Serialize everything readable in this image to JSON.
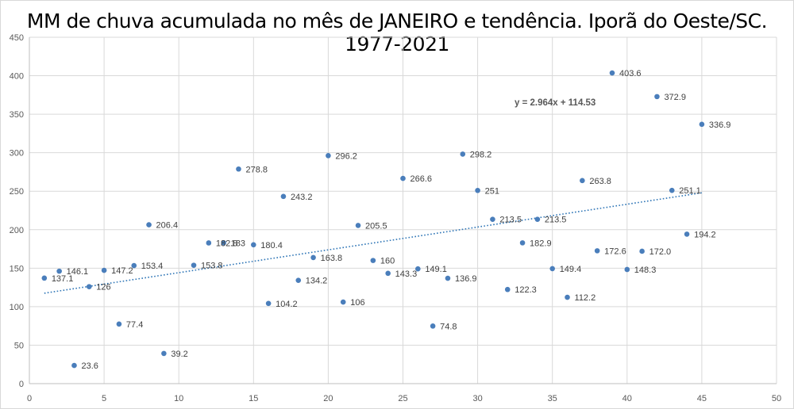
{
  "chart_data": {
    "type": "scatter",
    "title": "MM de chuva acumulada no mês de JANEIRO e tendência. Iporã do Oeste/SC. 1977-2021",
    "xlabel": "",
    "ylabel": "",
    "xlim": [
      0,
      50
    ],
    "ylim": [
      0,
      450
    ],
    "xticks": [
      0,
      5,
      10,
      15,
      20,
      25,
      30,
      35,
      40,
      45,
      50
    ],
    "yticks": [
      0,
      50,
      100,
      150,
      200,
      250,
      300,
      350,
      400,
      450
    ],
    "grid": true,
    "point_color": "#4a7ebb",
    "trendline_color": "#2e75b6",
    "x": [
      1,
      2,
      3,
      4,
      5,
      6,
      7,
      8,
      9,
      10,
      11,
      12,
      13,
      14,
      15,
      16,
      17,
      18,
      19,
      20,
      21,
      22,
      23,
      24,
      25,
      26,
      27,
      28,
      29,
      30,
      31,
      32,
      33,
      34,
      35,
      36,
      37,
      38,
      39,
      40,
      41,
      42,
      43,
      44,
      45
    ],
    "y": [
      137.1,
      146.1,
      23.6,
      126,
      147.2,
      77.4,
      153.4,
      206.4,
      39.2,
      null,
      153.8,
      182.8,
      183,
      278.8,
      180.4,
      104.2,
      243.2,
      134.2,
      163.8,
      296.2,
      106,
      205.5,
      160,
      143.3,
      266.6,
      149.1,
      74.8,
      136.9,
      298.2,
      251,
      213.5,
      122.3,
      182.9,
      213.5,
      149.4,
      112.2,
      263.8,
      172.6,
      403.6,
      148.3,
      172.0,
      372.9,
      251.1,
      194.2,
      336.9
    ],
    "labels": [
      "137.1",
      "146.1",
      "23.6",
      "126",
      "147.2",
      "77.4",
      "153.4",
      "206.4",
      "39.2",
      "",
      "153.8",
      "182.8",
      "183",
      "278.8",
      "180.4",
      "104.2",
      "243.2",
      "134.2",
      "163.8",
      "296.2",
      "106",
      "205.5",
      "160",
      "143.3",
      "266.6",
      "149.1",
      "74.8",
      "136.9",
      "298.2",
      "251",
      "213.5",
      "122.3",
      "182.9",
      "213.5",
      "149.4",
      "112.2",
      "263.8",
      "172.6",
      "403.6",
      "148.3",
      "172.0",
      "372.9",
      "251.1",
      "194.2",
      "336.9"
    ],
    "trendline": {
      "slope": 2.964,
      "intercept": 114.53,
      "x_range": [
        1,
        45
      ],
      "equation_label": "y = 2.964x + 114.53"
    }
  }
}
